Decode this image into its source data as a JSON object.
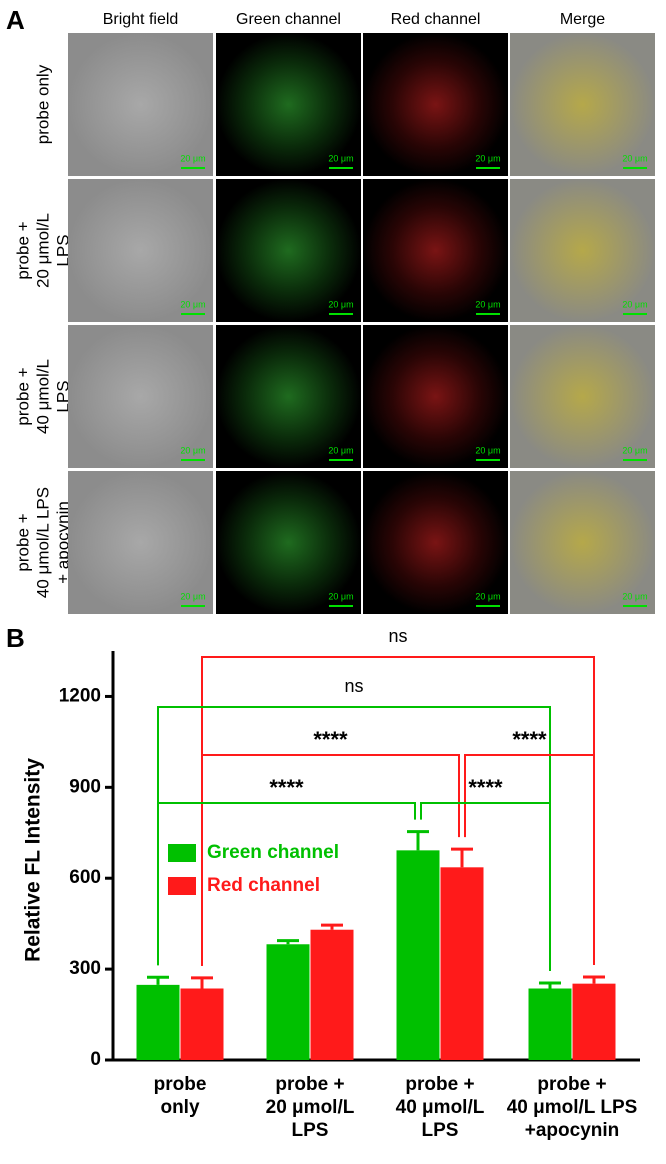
{
  "panel_a": {
    "label": "A",
    "columns": [
      "Bright field",
      "Green channel",
      "Red channel",
      "Merge"
    ],
    "rows": [
      [
        "probe only"
      ],
      [
        "probe +",
        "20 μmol/L",
        "LPS"
      ],
      [
        "probe +",
        "40 μmol/L",
        "LPS"
      ],
      [
        "probe +",
        "40 μmol/L LPS",
        "+ apocynin"
      ]
    ],
    "scale_bar": "20 μm"
  },
  "chart_data": {
    "type": "bar",
    "label": "B",
    "ylabel": "Relative FL Intensity",
    "categories": [
      [
        "probe",
        "only"
      ],
      [
        "probe +",
        "20 μmol/L",
        "LPS"
      ],
      [
        "probe +",
        "40 μmol/L",
        "LPS"
      ],
      [
        "probe +",
        "40 μmol/L LPS",
        "+apocynin"
      ]
    ],
    "series": [
      {
        "name": "Green channel",
        "color": "#00c000",
        "values": [
          248,
          382,
          692,
          236
        ],
        "errors": [
          25,
          12,
          62,
          18
        ]
      },
      {
        "name": "Red channel",
        "color": "#ff1a1a",
        "values": [
          236,
          430,
          636,
          252
        ],
        "errors": [
          35,
          15,
          60,
          22
        ]
      }
    ],
    "ylim": [
      0,
      1350
    ],
    "yticks": [
      0,
      300,
      600,
      900,
      1200
    ],
    "comparisons": [
      {
        "series": 1,
        "from": 0,
        "to": 3,
        "label": "ns"
      },
      {
        "series": 0,
        "from": 0,
        "to": 3,
        "label": "ns"
      },
      {
        "series": 1,
        "from": 0,
        "to": 2,
        "label": "****"
      },
      {
        "series": 1,
        "from": 2,
        "to": 3,
        "label": "****"
      },
      {
        "series": 0,
        "from": 0,
        "to": 2,
        "label": "****"
      },
      {
        "series": 0,
        "from": 2,
        "to": 3,
        "label": "****"
      }
    ]
  }
}
